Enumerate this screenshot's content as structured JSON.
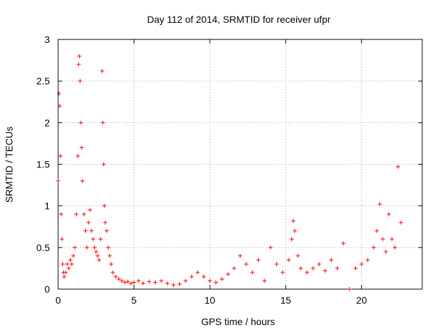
{
  "chart_data": {
    "type": "scatter",
    "title": "Day 112 of 2014, SRMTID for receiver ufpr",
    "xlabel": "GPS time / hours",
    "ylabel": "SRMTID / TECUs",
    "xlim": [
      0,
      24
    ],
    "ylim": [
      0,
      3
    ],
    "xticks": [
      0,
      5,
      10,
      15,
      20
    ],
    "xtick_labels": [
      "0",
      "5",
      "10",
      "15",
      "20"
    ],
    "yticks": [
      0,
      0.5,
      1,
      1.5,
      2,
      2.5,
      3
    ],
    "ytick_labels": [
      "0",
      "0.5",
      "1",
      "1.5",
      "2",
      "2.5",
      "3"
    ],
    "grid": true,
    "marker": "+",
    "color": "#ff0000",
    "series": [
      {
        "name": "SRMTID",
        "x": [
          0.0,
          0.05,
          0.1,
          0.15,
          0.2,
          0.25,
          0.3,
          0.35,
          0.4,
          0.5,
          0.6,
          0.7,
          0.8,
          0.9,
          1.0,
          1.1,
          1.2,
          1.3,
          1.35,
          1.4,
          1.45,
          1.5,
          1.55,
          1.6,
          1.7,
          1.8,
          1.9,
          2.0,
          2.1,
          2.2,
          2.3,
          2.4,
          2.5,
          2.6,
          2.7,
          2.8,
          2.9,
          2.95,
          3.0,
          3.05,
          3.1,
          3.2,
          3.3,
          3.4,
          3.5,
          3.6,
          3.8,
          4.0,
          4.2,
          4.4,
          4.6,
          4.8,
          5.0,
          5.3,
          5.6,
          6.0,
          6.4,
          6.8,
          7.2,
          7.6,
          8.0,
          8.4,
          8.8,
          9.2,
          9.6,
          10.0,
          10.4,
          10.8,
          11.2,
          11.6,
          12.0,
          12.4,
          12.8,
          13.2,
          13.6,
          14.0,
          14.4,
          14.8,
          15.2,
          15.4,
          15.5,
          15.6,
          15.8,
          16.0,
          16.4,
          16.8,
          17.2,
          17.6,
          18.0,
          18.4,
          18.8,
          19.2,
          19.6,
          20.0,
          20.4,
          20.8,
          21.0,
          21.2,
          21.4,
          21.6,
          21.8,
          22.0,
          22.2,
          22.4,
          22.6
        ],
        "y": [
          1.3,
          2.35,
          2.2,
          1.6,
          0.9,
          0.6,
          0.3,
          0.2,
          0.15,
          0.2,
          0.3,
          0.25,
          0.35,
          0.3,
          0.4,
          0.5,
          0.9,
          1.6,
          2.7,
          2.8,
          2.5,
          2.0,
          1.7,
          1.3,
          0.9,
          0.7,
          0.5,
          0.8,
          0.95,
          0.7,
          0.6,
          0.5,
          0.45,
          0.4,
          0.35,
          0.6,
          2.62,
          2.0,
          1.5,
          1.0,
          0.8,
          0.7,
          0.5,
          0.4,
          0.3,
          0.2,
          0.15,
          0.12,
          0.1,
          0.08,
          0.09,
          0.07,
          0.08,
          0.1,
          0.07,
          0.09,
          0.08,
          0.1,
          0.07,
          0.05,
          0.06,
          0.1,
          0.15,
          0.2,
          0.15,
          0.1,
          0.08,
          0.12,
          0.18,
          0.25,
          0.4,
          0.3,
          0.2,
          0.35,
          0.1,
          0.5,
          0.3,
          0.2,
          0.35,
          0.6,
          0.82,
          0.7,
          0.4,
          0.25,
          0.2,
          0.25,
          0.3,
          0.22,
          0.35,
          0.25,
          0.55,
          0.0,
          0.25,
          0.3,
          0.35,
          0.5,
          0.7,
          1.02,
          0.6,
          0.45,
          0.9,
          0.6,
          0.5,
          1.47,
          0.8
        ]
      }
    ]
  }
}
